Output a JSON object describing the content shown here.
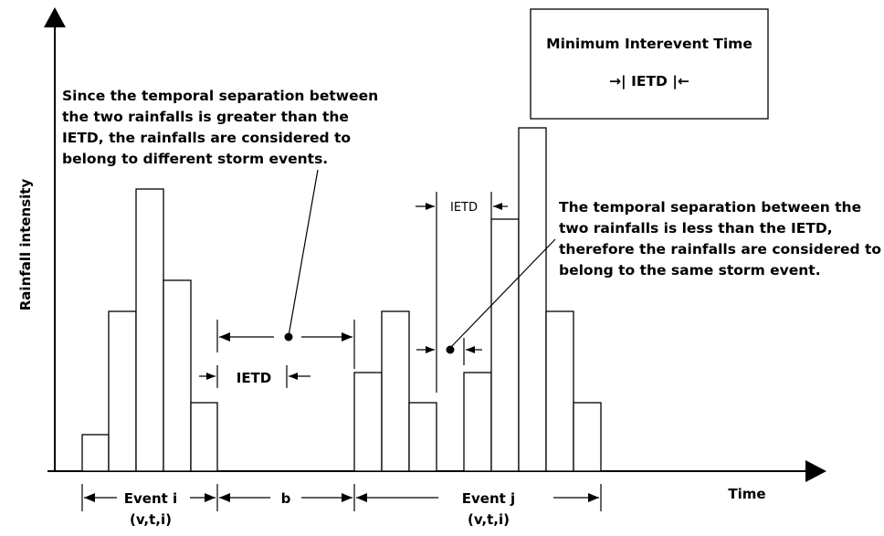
{
  "axes": {
    "y_label": "Rainfall intensity",
    "x_label": "Time"
  },
  "legend_box": {
    "title": "Minimum Interevent Time",
    "symbol": "→| IETD |←"
  },
  "annotations": {
    "different_events": [
      "Since the temporal separation between",
      "the two rainfalls is greater than the",
      "IETD, the rainfalls are considered to",
      "belong to different storm events."
    ],
    "same_event": [
      "The temporal separation between the",
      "two rainfalls is less than the IETD,",
      "therefore the rainfalls are considered to",
      "belong to the same storm event."
    ]
  },
  "labels": {
    "ietd_gap_large": "IETD",
    "ietd_gap_small": "IETD",
    "event_i": "Event i",
    "event_i_params": "(v,t,i)",
    "between": "b",
    "event_j": "Event j",
    "event_j_params": "(v,t,i)"
  },
  "bars": {
    "event_i": [
      1,
      5,
      9,
      6,
      2
    ],
    "event_j_part1": [
      3,
      5,
      2
    ],
    "event_j_part2": [
      3,
      8,
      11,
      5,
      2
    ]
  }
}
